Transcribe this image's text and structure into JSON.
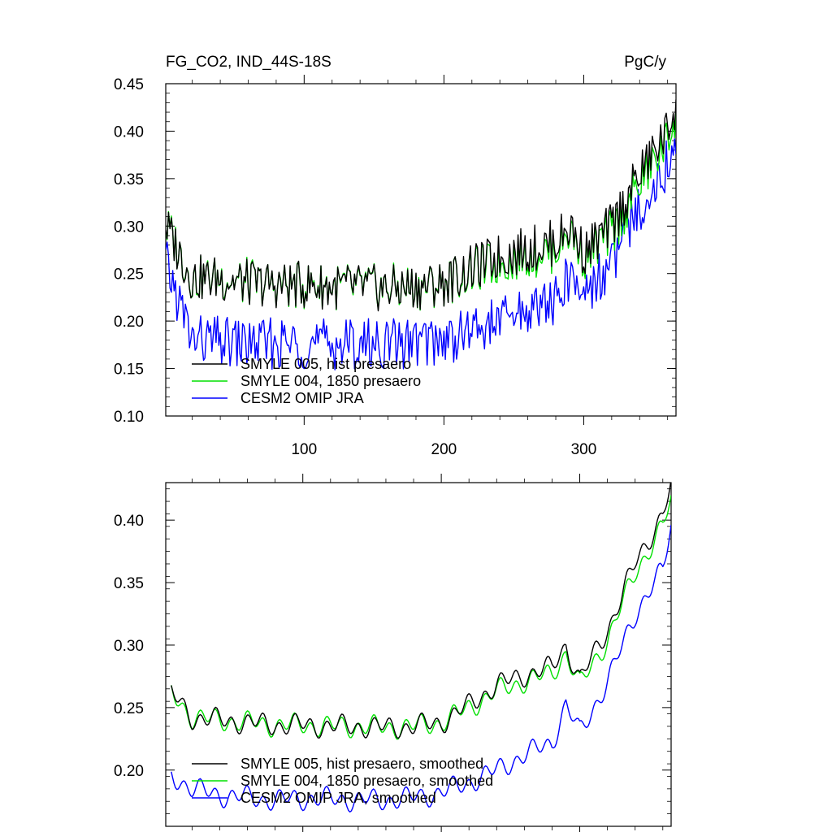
{
  "figure": {
    "title_left": "FG_CO2, IND_44S-18S",
    "title_right": "PgC/y"
  },
  "colors": {
    "hist": "#000000",
    "p1850": "#00e000",
    "omip": "#0000ff",
    "axis": "#000000"
  },
  "chart_data": [
    {
      "type": "line",
      "panel": "top",
      "xlim": [
        1,
        366
      ],
      "ylim": [
        0.1,
        0.45
      ],
      "xticks": [
        100,
        200,
        300
      ],
      "xtick_labels": [
        "100",
        "200",
        "300"
      ],
      "yticks": [
        0.1,
        0.15,
        0.2,
        0.25,
        0.3,
        0.35,
        0.4,
        0.45
      ],
      "ytick_labels": [
        "0.10",
        "0.15",
        "0.20",
        "0.25",
        "0.30",
        "0.35",
        "0.40",
        "0.45"
      ],
      "x": [
        1,
        20,
        40,
        60,
        80,
        100,
        120,
        140,
        160,
        180,
        200,
        220,
        240,
        260,
        280,
        290,
        300,
        320,
        340,
        360,
        366
      ],
      "series": [
        {
          "name": "SMYLE 005, hist presaero",
          "color_key": "hist",
          "values": [
            0.3,
            0.245,
            0.245,
            0.24,
            0.238,
            0.238,
            0.236,
            0.236,
            0.234,
            0.236,
            0.24,
            0.255,
            0.268,
            0.275,
            0.283,
            0.3,
            0.272,
            0.3,
            0.355,
            0.4,
            0.43
          ]
        },
        {
          "name": "SMYLE 004, 1850 presaero",
          "color_key": "p1850",
          "values": [
            0.3,
            0.245,
            0.245,
            0.24,
            0.238,
            0.238,
            0.236,
            0.236,
            0.234,
            0.236,
            0.24,
            0.252,
            0.262,
            0.27,
            0.277,
            0.295,
            0.268,
            0.292,
            0.345,
            0.39,
            0.42
          ]
        },
        {
          "name": "CESM2 OMIP JRA",
          "color_key": "omip",
          "values": [
            0.26,
            0.18,
            0.178,
            0.176,
            0.176,
            0.176,
            0.176,
            0.176,
            0.176,
            0.178,
            0.18,
            0.19,
            0.2,
            0.212,
            0.222,
            0.245,
            0.23,
            0.26,
            0.32,
            0.365,
            0.4
          ]
        }
      ],
      "legend_position": "bottom-left"
    },
    {
      "type": "line",
      "panel": "bottom",
      "xlim": [
        1,
        366
      ],
      "ylim": [
        0.155,
        0.43
      ],
      "xticks": [
        100,
        200,
        300
      ],
      "xtick_labels": [
        "",
        "",
        ""
      ],
      "yticks": [
        0.2,
        0.25,
        0.3,
        0.35,
        0.4
      ],
      "ytick_labels": [
        "0.20",
        "0.25",
        "0.30",
        "0.35",
        "0.40"
      ],
      "x": [
        5,
        20,
        40,
        60,
        80,
        100,
        120,
        140,
        160,
        180,
        200,
        220,
        240,
        260,
        280,
        290,
        300,
        320,
        340,
        360,
        366
      ],
      "series": [
        {
          "name": "SMYLE 005, hist presaero, smoothed",
          "color_key": "hist",
          "values": [
            0.262,
            0.242,
            0.24,
            0.238,
            0.236,
            0.236,
            0.235,
            0.235,
            0.234,
            0.235,
            0.238,
            0.252,
            0.268,
            0.276,
            0.282,
            0.3,
            0.272,
            0.312,
            0.365,
            0.405,
            0.427
          ]
        },
        {
          "name": "SMYLE 004, 1850 presaero, smoothed",
          "color_key": "p1850",
          "values": [
            0.262,
            0.242,
            0.24,
            0.238,
            0.236,
            0.236,
            0.235,
            0.235,
            0.234,
            0.235,
            0.238,
            0.25,
            0.263,
            0.271,
            0.277,
            0.294,
            0.268,
            0.304,
            0.358,
            0.395,
            0.416
          ]
        },
        {
          "name": "CESM2 OMIP JRA, smoothed",
          "color_key": "omip",
          "values": [
            0.196,
            0.185,
            0.18,
            0.178,
            0.176,
            0.177,
            0.177,
            0.176,
            0.176,
            0.178,
            0.182,
            0.19,
            0.2,
            0.212,
            0.222,
            0.252,
            0.23,
            0.27,
            0.325,
            0.36,
            0.396
          ]
        }
      ],
      "legend_position": "bottom-left"
    }
  ]
}
